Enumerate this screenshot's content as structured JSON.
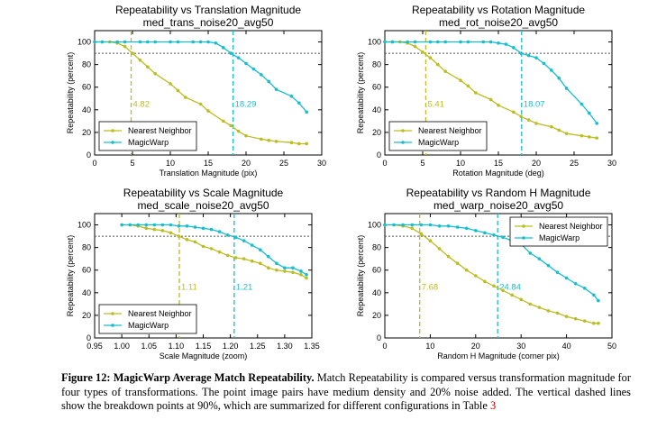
{
  "colors": {
    "nn": "#bcbd22",
    "mw": "#17becf",
    "threshold": "#555555"
  },
  "chart_data": [
    {
      "type": "line",
      "title": "Repeatability vs Translation Magnitude",
      "subtitle": "med_trans_noise20_avg50",
      "xlabel": "Translation Magnitude (pix)",
      "ylabel": "Repeatability (percent)",
      "xlim": [
        0,
        30
      ],
      "ylim": [
        0,
        110
      ],
      "xticks": [
        0,
        5,
        10,
        15,
        20,
        25,
        30
      ],
      "xtick_labels": [
        "0",
        "5",
        "10",
        "15",
        "20",
        "25",
        "30"
      ],
      "yticks": [
        0,
        20,
        40,
        60,
        80,
        100
      ],
      "threshold_y": 90,
      "legend_position": "lower-left",
      "series": [
        {
          "name": "Nearest Neighbor",
          "x": [
            0,
            1,
            2,
            3,
            4,
            5,
            6,
            7,
            8,
            10,
            11,
            12,
            14,
            15,
            17,
            18,
            19,
            20,
            22,
            23,
            24,
            26,
            27,
            28
          ],
          "y": [
            100,
            100,
            100,
            99,
            96,
            90,
            84,
            78,
            72,
            63,
            57,
            51,
            45,
            39,
            30,
            26,
            21,
            17,
            14,
            13,
            12,
            11,
            10,
            10
          ]
        },
        {
          "name": "MagicWarp",
          "x": [
            0,
            1,
            3,
            4,
            6,
            7,
            8,
            10,
            11,
            13,
            14,
            15,
            16,
            17,
            18,
            19,
            20,
            21,
            22,
            23,
            24,
            26,
            27,
            28
          ],
          "y": [
            100,
            100,
            100,
            100,
            100,
            100,
            100,
            100,
            100,
            100,
            100,
            100,
            99,
            95,
            90,
            86,
            81,
            76,
            71,
            65,
            58,
            52,
            46,
            38
          ]
        }
      ],
      "breakpoints": [
        {
          "x": 4.82,
          "label": "4.82",
          "series": "nn"
        },
        {
          "x": 18.29,
          "label": "18.29",
          "series": "mw"
        }
      ]
    },
    {
      "type": "line",
      "title": "Repeatability vs Rotation Magnitude",
      "subtitle": "med_rot_noise20_avg50",
      "xlabel": "Rotation Magnitude (deg)",
      "ylabel": "Repeatability (percent)",
      "xlim": [
        0,
        30
      ],
      "ylim": [
        0,
        110
      ],
      "xticks": [
        0,
        5,
        10,
        15,
        20,
        25,
        30
      ],
      "xtick_labels": [
        "0",
        "5",
        "10",
        "15",
        "20",
        "25",
        "30"
      ],
      "yticks": [
        0,
        20,
        40,
        60,
        80,
        100
      ],
      "threshold_y": 90,
      "legend_position": "lower-left",
      "series": [
        {
          "name": "Nearest Neighbor",
          "x": [
            0,
            1,
            2,
            3,
            4,
            5,
            6,
            7,
            8,
            10,
            11,
            12,
            14,
            15,
            17,
            18,
            19,
            20,
            22,
            23,
            24,
            26,
            27,
            28
          ],
          "y": [
            100,
            100,
            100,
            99,
            96,
            91,
            86,
            80,
            74,
            66,
            61,
            55,
            49,
            44,
            38,
            34,
            31,
            28,
            25,
            22,
            19,
            17,
            16,
            15
          ]
        },
        {
          "name": "MagicWarp",
          "x": [
            0,
            1,
            3,
            4,
            6,
            7,
            8,
            10,
            11,
            13,
            14,
            15,
            16,
            17,
            18,
            19,
            20,
            21,
            22,
            23,
            24,
            26,
            27,
            28
          ],
          "y": [
            100,
            100,
            100,
            100,
            100,
            100,
            100,
            100,
            100,
            100,
            100,
            99,
            98,
            95,
            90,
            88,
            86,
            81,
            75,
            68,
            59,
            45,
            37,
            28
          ]
        }
      ],
      "breakpoints": [
        {
          "x": 5.41,
          "label": "5.41",
          "series": "nn"
        },
        {
          "x": 18.07,
          "label": "18.07",
          "series": "mw"
        }
      ]
    },
    {
      "type": "line",
      "title": "Repeatability vs Scale Magnitude",
      "subtitle": "med_scale_noise20_avg50",
      "xlabel": "Scale Magnitude (zoom)",
      "ylabel": "Repeatability (percent)",
      "xlim": [
        0.95,
        1.35
      ],
      "ylim": [
        0,
        110
      ],
      "xticks": [
        0.95,
        1.0,
        1.05,
        1.1,
        1.15,
        1.2,
        1.25,
        1.3,
        1.35
      ],
      "xtick_labels": [
        "0.95",
        "1.00",
        "1.05",
        "1.10",
        "1.15",
        "1.20",
        "1.25",
        "1.30",
        "1.35"
      ],
      "yticks": [
        0,
        20,
        40,
        60,
        80,
        100
      ],
      "threshold_y": 90,
      "legend_position": "lower-left",
      "series": [
        {
          "name": "Nearest Neighbor",
          "x": [
            1.0,
            1.015,
            1.03,
            1.045,
            1.06,
            1.075,
            1.09,
            1.105,
            1.12,
            1.135,
            1.15,
            1.165,
            1.18,
            1.195,
            1.21,
            1.225,
            1.24,
            1.255,
            1.27,
            1.285,
            1.3,
            1.315,
            1.33,
            1.34
          ],
          "y": [
            100,
            100,
            99,
            97,
            96,
            95,
            93,
            90,
            87,
            85,
            81,
            79,
            76,
            73,
            71,
            70,
            68,
            66,
            62,
            60,
            59,
            58,
            56,
            53
          ]
        },
        {
          "name": "MagicWarp",
          "x": [
            1.0,
            1.015,
            1.03,
            1.045,
            1.06,
            1.075,
            1.09,
            1.105,
            1.12,
            1.135,
            1.15,
            1.165,
            1.18,
            1.195,
            1.21,
            1.225,
            1.24,
            1.255,
            1.27,
            1.285,
            1.3,
            1.315,
            1.33,
            1.34
          ],
          "y": [
            100,
            100,
            100,
            100,
            100,
            100,
            100,
            99,
            99,
            98,
            97,
            96,
            94,
            91,
            89,
            86,
            82,
            78,
            72,
            66,
            62,
            62,
            59,
            56
          ]
        }
      ],
      "breakpoints": [
        {
          "x": 1.106,
          "label": "1.11",
          "series": "nn"
        },
        {
          "x": 1.207,
          "label": "1.21",
          "series": "mw"
        }
      ]
    },
    {
      "type": "line",
      "title": "Repeatability vs Random H Magnitude",
      "subtitle": "med_warp_noise20_avg50",
      "xlabel": "Random H Magnitude (corner pix)",
      "ylabel": "Repeatability (percent)",
      "xlim": [
        0,
        50
      ],
      "ylim": [
        0,
        110
      ],
      "xticks": [
        0,
        10,
        20,
        30,
        40,
        50
      ],
      "xtick_labels": [
        "0",
        "10",
        "20",
        "30",
        "40",
        "50"
      ],
      "yticks": [
        0,
        20,
        40,
        60,
        80,
        100
      ],
      "threshold_y": 90,
      "legend_position": "top-right",
      "series": [
        {
          "name": "Nearest Neighbor",
          "x": [
            0,
            2,
            4,
            6,
            8,
            10,
            12,
            14,
            16,
            18,
            20,
            22,
            24,
            26,
            28,
            30,
            32,
            34,
            36,
            38,
            40,
            42,
            44,
            46,
            47
          ],
          "y": [
            100,
            100,
            99,
            97,
            92,
            86,
            79,
            72,
            66,
            60,
            55,
            50,
            46,
            42,
            38,
            34,
            30,
            27,
            24,
            22,
            19,
            17,
            15,
            13,
            13
          ]
        },
        {
          "name": "MagicWarp",
          "x": [
            0,
            2,
            4,
            6,
            8,
            10,
            12,
            14,
            16,
            18,
            20,
            22,
            24,
            26,
            28,
            30,
            32,
            34,
            36,
            38,
            40,
            42,
            44,
            46,
            47
          ],
          "y": [
            100,
            100,
            100,
            100,
            100,
            100,
            99,
            99,
            98,
            97,
            95,
            93,
            91,
            89,
            86,
            83,
            75,
            70,
            64,
            58,
            53,
            48,
            44,
            38,
            33
          ]
        }
      ],
      "breakpoints": [
        {
          "x": 7.68,
          "label": "7.68",
          "series": "nn"
        },
        {
          "x": 24.84,
          "label": "24.84",
          "series": "mw"
        }
      ]
    }
  ],
  "caption": {
    "label": "Figure 12:",
    "bold_title": "MagicWarp Average Match Repeatability.",
    "text": "Match Repeatability is compared versus transformation magnitude for four types of transformations. The point image pairs have medium density and 20% noise added. The vertical dashed lines show the breakdown points at 90%, which are summarized for different configurations in Table",
    "table_ref": "3"
  }
}
